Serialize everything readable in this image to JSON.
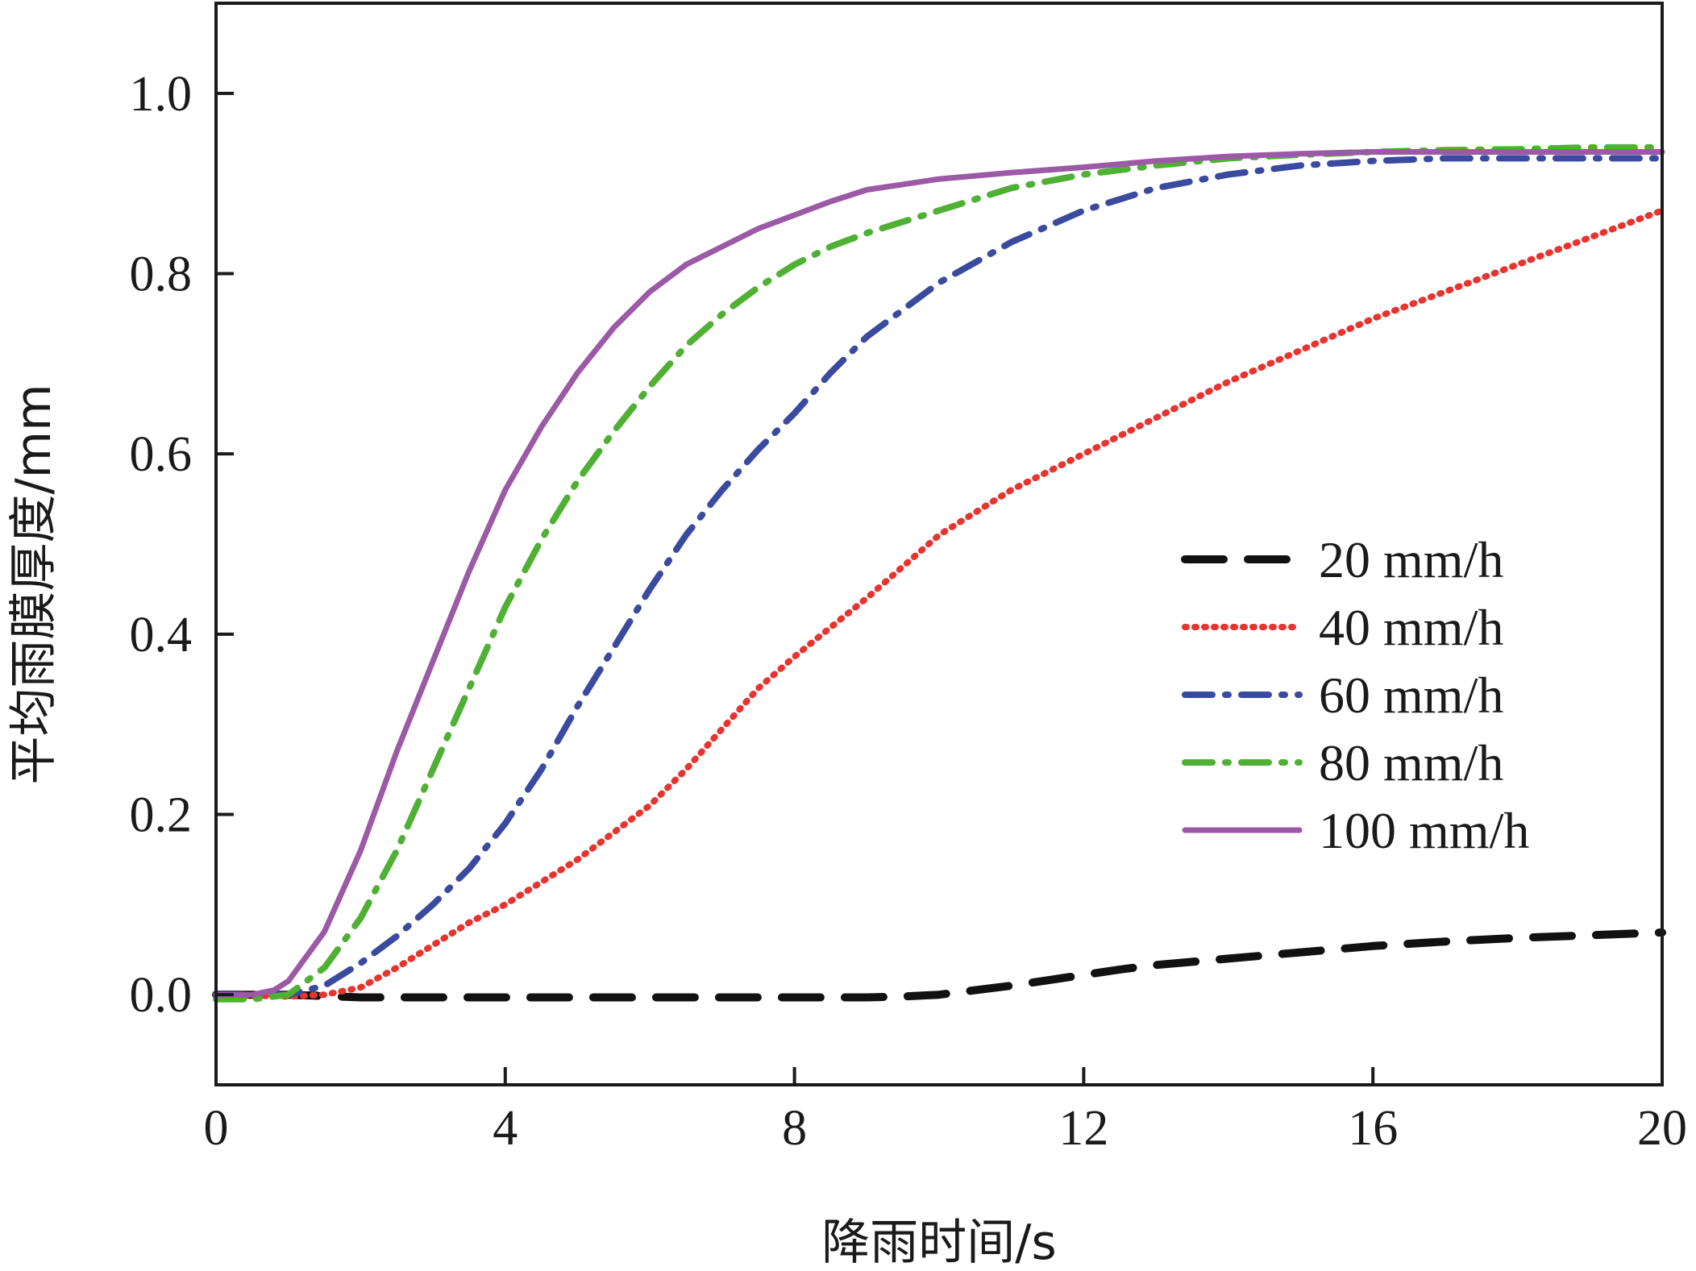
{
  "chart_data": {
    "type": "line",
    "title": "",
    "xlabel": "降雨时间/s",
    "ylabel": "平均雨膜厚度/mm",
    "xlim": [
      0,
      20
    ],
    "ylim": [
      -0.1,
      1.1
    ],
    "xticks": [
      "0",
      "4",
      "8",
      "12",
      "16",
      "20"
    ],
    "yticks": [
      "0.0",
      "0.2",
      "0.4",
      "0.6",
      "0.8",
      "1.0"
    ],
    "grid": false,
    "legend_position": "right",
    "series": [
      {
        "name": "20 mm/h",
        "color": "#111111",
        "style": "dashed",
        "x": [
          0,
          1,
          2,
          3,
          4,
          5,
          6,
          7,
          8,
          9,
          9.5,
          10,
          10.5,
          11,
          11.5,
          12,
          12.5,
          13,
          14,
          15,
          16,
          17,
          18,
          19,
          20
        ],
        "y": [
          0.0,
          0.0,
          -0.003,
          -0.003,
          -0.003,
          -0.003,
          -0.003,
          -0.003,
          -0.003,
          -0.003,
          -0.002,
          0.0,
          0.005,
          0.01,
          0.016,
          0.022,
          0.028,
          0.033,
          0.04,
          0.047,
          0.054,
          0.059,
          0.063,
          0.066,
          0.069
        ]
      },
      {
        "name": "40 mm/h",
        "color": "#e8332f",
        "style": "dotted",
        "x": [
          0,
          1,
          1.5,
          2,
          2.5,
          3,
          3.5,
          4,
          4.5,
          5,
          5.5,
          6,
          6.5,
          7,
          7.5,
          8,
          9,
          10,
          11,
          12,
          13,
          14,
          15,
          16,
          17,
          18,
          19,
          20
        ],
        "y": [
          0.0,
          -0.002,
          0.0,
          0.008,
          0.03,
          0.055,
          0.08,
          0.1,
          0.125,
          0.15,
          0.18,
          0.21,
          0.25,
          0.295,
          0.34,
          0.375,
          0.44,
          0.51,
          0.56,
          0.6,
          0.64,
          0.68,
          0.715,
          0.75,
          0.78,
          0.81,
          0.84,
          0.87
        ]
      },
      {
        "name": "60 mm/h",
        "color": "#3a4a9e",
        "style": "dashdot",
        "x": [
          0,
          1,
          1.5,
          2,
          2.5,
          3,
          3.5,
          4,
          4.5,
          5,
          5.5,
          6,
          6.5,
          7,
          7.5,
          8,
          8.5,
          9,
          10,
          11,
          12,
          13,
          14,
          15,
          16,
          17,
          18,
          19,
          20
        ],
        "y": [
          0.0,
          0.0,
          0.01,
          0.035,
          0.065,
          0.1,
          0.14,
          0.19,
          0.25,
          0.32,
          0.385,
          0.45,
          0.51,
          0.56,
          0.605,
          0.645,
          0.69,
          0.73,
          0.79,
          0.835,
          0.87,
          0.895,
          0.91,
          0.92,
          0.925,
          0.928,
          0.928,
          0.928,
          0.928
        ]
      },
      {
        "name": "80 mm/h",
        "color": "#4fb034",
        "style": "dashdot",
        "x": [
          0,
          0.5,
          1,
          1.5,
          2,
          2.5,
          3,
          3.5,
          4,
          4.5,
          5,
          5.5,
          6,
          6.5,
          7,
          7.5,
          8,
          8.5,
          9,
          10,
          11,
          12,
          13,
          14,
          15,
          16,
          17,
          18,
          19,
          20
        ],
        "y": [
          -0.005,
          -0.005,
          0.0,
          0.03,
          0.085,
          0.16,
          0.25,
          0.34,
          0.43,
          0.505,
          0.57,
          0.625,
          0.675,
          0.72,
          0.755,
          0.785,
          0.81,
          0.83,
          0.845,
          0.87,
          0.895,
          0.91,
          0.92,
          0.928,
          0.932,
          0.935,
          0.937,
          0.938,
          0.94,
          0.94
        ]
      },
      {
        "name": "100 mm/h",
        "color": "#9b59a6",
        "style": "solid",
        "x": [
          0,
          0.5,
          0.8,
          1,
          1.5,
          2,
          2.5,
          3,
          3.5,
          4,
          4.5,
          5,
          5.5,
          6,
          6.5,
          7,
          7.5,
          8,
          8.5,
          9,
          10,
          11,
          12,
          13,
          14,
          15,
          16,
          17,
          18,
          19,
          20
        ],
        "y": [
          0.0,
          0.0,
          0.005,
          0.015,
          0.07,
          0.16,
          0.27,
          0.37,
          0.47,
          0.56,
          0.63,
          0.69,
          0.74,
          0.78,
          0.81,
          0.83,
          0.85,
          0.865,
          0.88,
          0.893,
          0.905,
          0.912,
          0.918,
          0.925,
          0.93,
          0.933,
          0.935,
          0.935,
          0.935,
          0.935,
          0.935
        ]
      }
    ]
  }
}
